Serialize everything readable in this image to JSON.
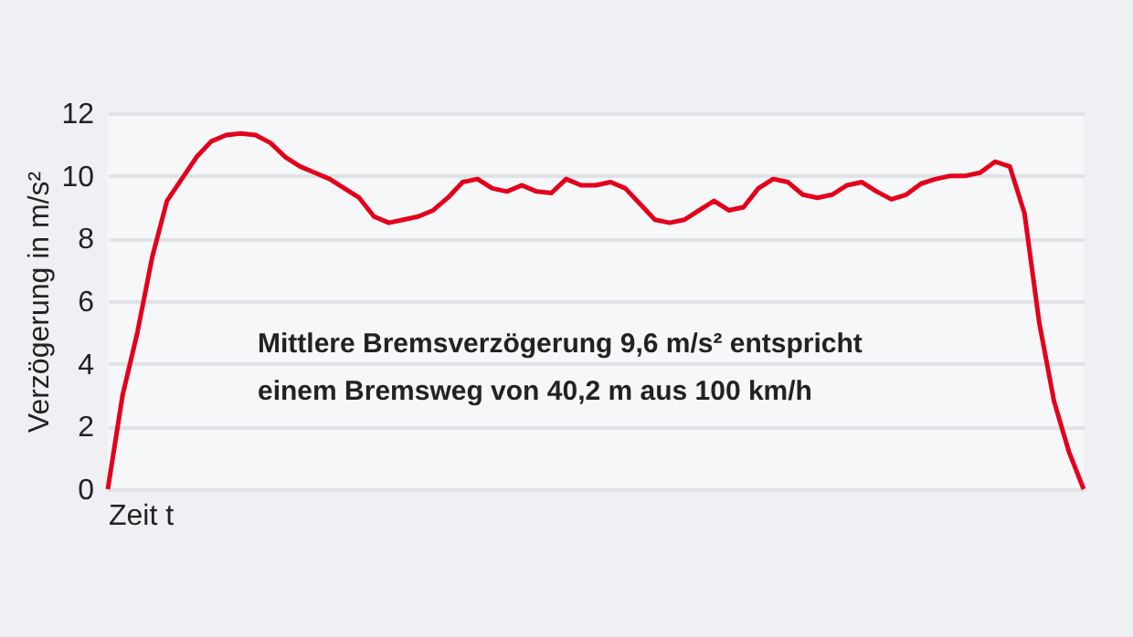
{
  "chart_data": {
    "type": "line",
    "xlabel": "Zeit t",
    "ylabel": "Verzögerung in m/s²",
    "annotations": [
      "Mittlere Bremsverzögerung 9,6 m/s² entspricht",
      "einem Bremsweg von 40,2 m aus 100 km/h"
    ],
    "categories": [
      null,
      null,
      null,
      null,
      null,
      null,
      null,
      null,
      null,
      null,
      null,
      null,
      null,
      null,
      null,
      null,
      null,
      null,
      null,
      null,
      null,
      null,
      null,
      null,
      null,
      null,
      null,
      null,
      null,
      null,
      null,
      null,
      null,
      null,
      null,
      null,
      null,
      null,
      null,
      null,
      null,
      null,
      null,
      null,
      null,
      null,
      null,
      null,
      null,
      null,
      null,
      null,
      null,
      null,
      null,
      null,
      null,
      null,
      null,
      null,
      null,
      null,
      null,
      null,
      null,
      null,
      null
    ],
    "series": [
      {
        "color": "#e3001b",
        "values": [
          0,
          3.0,
          5.0,
          7.4,
          9.2,
          9.9,
          10.6,
          11.1,
          11.3,
          11.35,
          11.3,
          11.05,
          10.6,
          10.3,
          10.1,
          9.9,
          9.6,
          9.3,
          8.7,
          8.5,
          8.6,
          8.7,
          8.9,
          9.3,
          9.8,
          9.9,
          9.6,
          9.5,
          9.7,
          9.5,
          9.45,
          9.9,
          9.7,
          9.7,
          9.8,
          9.6,
          9.1,
          8.6,
          8.5,
          8.6,
          8.9,
          9.2,
          8.9,
          9.0,
          9.6,
          9.9,
          9.8,
          9.4,
          9.3,
          9.4,
          9.7,
          9.8,
          9.5,
          9.25,
          9.4,
          9.75,
          9.9,
          10.0,
          10.0,
          10.1,
          10.45,
          10.3,
          8.8,
          5.3,
          2.8,
          1.2,
          0
        ]
      }
    ],
    "ylim": [
      0,
      12
    ],
    "yticks": [
      0,
      2,
      4,
      6,
      8,
      10,
      12
    ],
    "grid": "y",
    "tick_labels": "y",
    "marker": "none",
    "line_style": "solid",
    "legend": false
  }
}
